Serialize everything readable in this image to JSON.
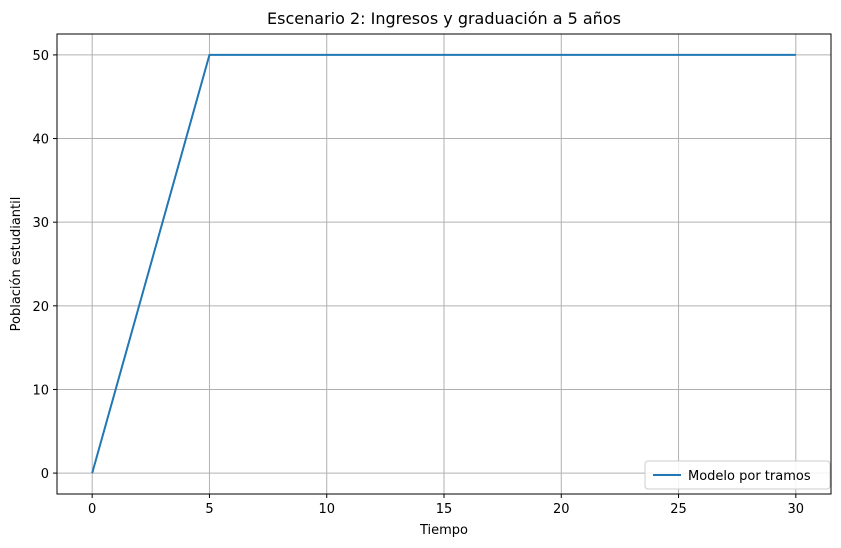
{
  "chart_data": {
    "type": "line",
    "title": "Escenario 2: Ingresos y graduación a 5 años",
    "xlabel": "Tiempo",
    "ylabel": "Población estudiantil",
    "xlim": [
      -1.5,
      31.5
    ],
    "ylim": [
      -2.5,
      52.5
    ],
    "xticks": [
      0,
      5,
      10,
      15,
      20,
      25,
      30
    ],
    "yticks": [
      0,
      10,
      20,
      30,
      40,
      50
    ],
    "grid": true,
    "legend_position": "lower-right",
    "series": [
      {
        "name": "Modelo por tramos",
        "color": "#1f77b4",
        "x": [
          0,
          5,
          30
        ],
        "y": [
          0,
          50,
          50
        ]
      }
    ]
  }
}
